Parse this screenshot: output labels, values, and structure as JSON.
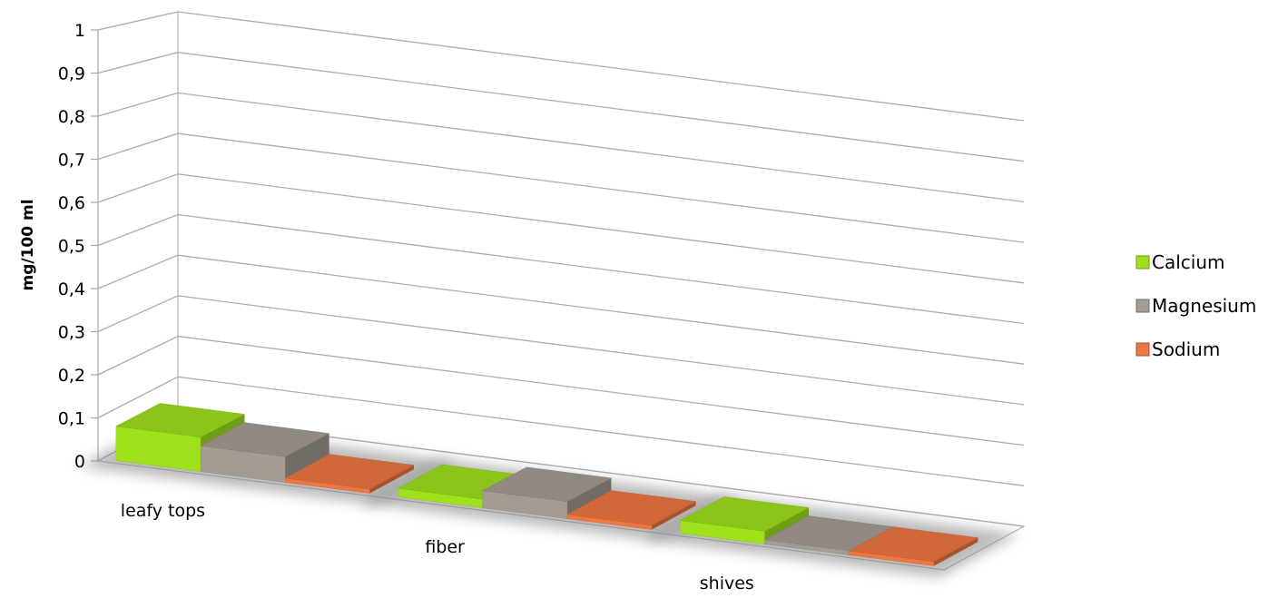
{
  "chart_data": {
    "type": "bar",
    "title": "",
    "xlabel": "",
    "ylabel": "mg/100 ml",
    "ylim": [
      0,
      1
    ],
    "y_ticks": [
      "0",
      "0,1",
      "0,2",
      "0,3",
      "0,4",
      "0,5",
      "0,6",
      "0,7",
      "0,8",
      "0,9",
      "1"
    ],
    "categories": [
      "leafy tops",
      "fiber",
      "shives"
    ],
    "series": [
      {
        "name": "Calcium",
        "color": "#9ee01c",
        "values": [
          0.08,
          0.02,
          0.03
        ]
      },
      {
        "name": "Magnesium",
        "color": "#a49c93",
        "values": [
          0.06,
          0.04,
          0.01
        ]
      },
      {
        "name": "Sodium",
        "color": "#ee7642",
        "values": [
          0.01,
          0.01,
          0.01
        ]
      }
    ],
    "grid": true,
    "legend_position": "right",
    "style": "3d-perspective"
  }
}
